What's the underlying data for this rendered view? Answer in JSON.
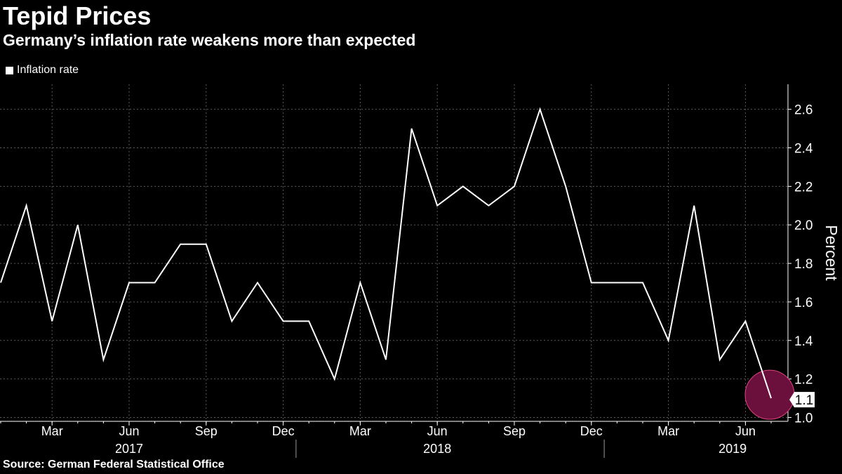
{
  "header": {
    "title": "Tepid Prices",
    "subtitle": "Germany’s inflation rate weakens more than expected"
  },
  "legend": {
    "label": "Inflation rate"
  },
  "footer": {
    "source": "Source: German Federal Statistical Office"
  },
  "colors": {
    "background": "#000000",
    "line": "#ffffff",
    "highlight": "#6b0f3c",
    "highlight_stroke": "#e0457f",
    "grid": "#5a5a5a"
  },
  "chart_data": {
    "type": "line",
    "title": "Tepid Prices",
    "subtitle": "Germany’s inflation rate weakens more than expected",
    "ylabel": "Percent",
    "xlabel": "",
    "ylim": [
      0.98,
      2.73
    ],
    "yticks": [
      1.0,
      1.2,
      1.4,
      1.6,
      1.8,
      2.0,
      2.2,
      2.4,
      2.6
    ],
    "ytick_labels": [
      "1.0",
      "1.2",
      "1.4",
      "1.6",
      "1.8",
      "2.0",
      "2.2",
      "2.4",
      "2.6"
    ],
    "x": [
      "2017-01",
      "2017-02",
      "2017-03",
      "2017-04",
      "2017-05",
      "2017-06",
      "2017-07",
      "2017-08",
      "2017-09",
      "2017-10",
      "2017-11",
      "2017-12",
      "2018-01",
      "2018-02",
      "2018-03",
      "2018-04",
      "2018-05",
      "2018-06",
      "2018-07",
      "2018-08",
      "2018-09",
      "2018-10",
      "2018-11",
      "2018-12",
      "2019-01",
      "2019-02",
      "2019-03",
      "2019-04",
      "2019-05",
      "2019-06",
      "2019-07"
    ],
    "series": [
      {
        "name": "Inflation rate",
        "values": [
          1.7,
          2.1,
          1.5,
          2.0,
          1.3,
          1.7,
          1.7,
          1.9,
          1.9,
          1.5,
          1.7,
          1.5,
          1.5,
          1.2,
          1.7,
          1.3,
          2.5,
          2.1,
          2.2,
          2.1,
          2.2,
          2.6,
          2.2,
          1.7,
          1.7,
          1.7,
          1.4,
          2.1,
          1.3,
          1.5,
          1.1
        ]
      }
    ],
    "month_ticks": [
      {
        "index": 2,
        "label": "Mar"
      },
      {
        "index": 5,
        "label": "Jun"
      },
      {
        "index": 8,
        "label": "Sep"
      },
      {
        "index": 11,
        "label": "Dec"
      },
      {
        "index": 14,
        "label": "Mar"
      },
      {
        "index": 17,
        "label": "Jun"
      },
      {
        "index": 20,
        "label": "Sep"
      },
      {
        "index": 23,
        "label": "Dec"
      },
      {
        "index": 26,
        "label": "Mar"
      },
      {
        "index": 29,
        "label": "Jun"
      }
    ],
    "year_labels": [
      {
        "center_index": 5,
        "label": "2017"
      },
      {
        "center_index": 17,
        "label": "2018"
      },
      {
        "center_index": 28.5,
        "label": "2019"
      }
    ],
    "year_separators": [
      11,
      23
    ],
    "last_value_label": "1.1",
    "grid": true,
    "legend_position": "top-left"
  }
}
